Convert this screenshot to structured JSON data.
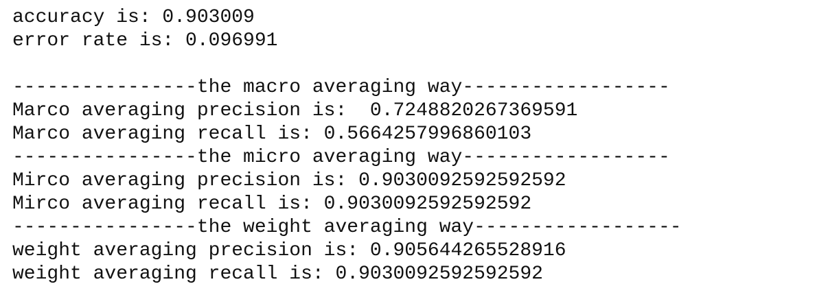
{
  "output": {
    "summary": [
      "accuracy is: 0.903009",
      "error rate is: 0.096991"
    ],
    "sections": [
      {
        "header": "----------------the macro averaging way------------------",
        "lines": [
          "Marco averaging precision is:  0.7248820267369591",
          "Marco averaging recall is: 0.5664257996860103"
        ]
      },
      {
        "header": "----------------the micro averaging way------------------",
        "lines": [
          "Mirco averaging precision is: 0.9030092592592592",
          "Mirco averaging recall is: 0.9030092592592592"
        ]
      },
      {
        "header": "----------------the weight averaging way------------------",
        "lines": [
          "weight averaging precision is: 0.905644265528916",
          "weight averaging recall is: 0.9030092592592592"
        ]
      }
    ]
  }
}
